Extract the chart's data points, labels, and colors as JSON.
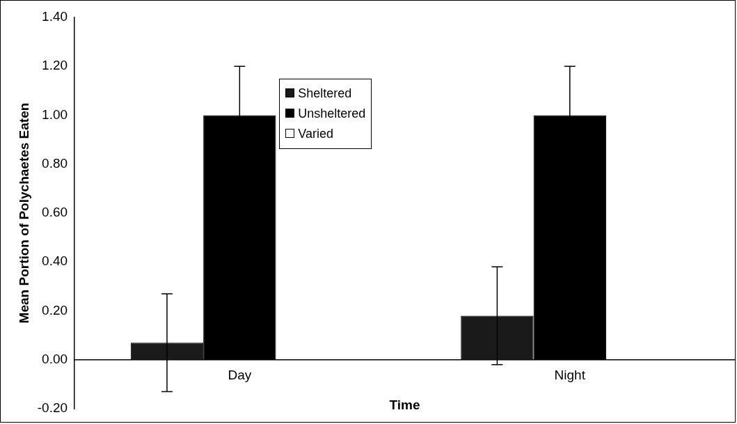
{
  "chart_data": {
    "type": "bar",
    "xlabel": "Time",
    "ylabel": "Mean Portion of Polychaetes Eaten",
    "categories": [
      "Day",
      "Night"
    ],
    "series": [
      {
        "name": "Sheltered",
        "color": "#1a1a1a",
        "values": [
          0.07,
          0.18
        ],
        "errors": [
          0.2,
          0.2
        ]
      },
      {
        "name": "Unsheltered",
        "color": "#000000",
        "values": [
          1.0,
          1.0
        ],
        "errors": [
          0.2,
          0.2
        ]
      },
      {
        "name": "Varied",
        "color": "#ffffff",
        "values": [
          0,
          0
        ]
      }
    ],
    "ylim": [
      -0.2,
      1.4
    ],
    "yticks": [
      {
        "value": -0.2,
        "label": "-0.20"
      },
      {
        "value": 0,
        "label": "0.00"
      },
      {
        "value": 0.2,
        "label": "0.20"
      },
      {
        "value": 0.4,
        "label": "0.40"
      },
      {
        "value": 0.6,
        "label": "0.60"
      },
      {
        "value": 0.8,
        "label": "0.80"
      },
      {
        "value": 1.0,
        "label": "1.00"
      },
      {
        "value": 1.2,
        "label": "1.20"
      },
      {
        "value": 1.4,
        "label": "1.40"
      }
    ],
    "grid": false,
    "legend": "top"
  }
}
